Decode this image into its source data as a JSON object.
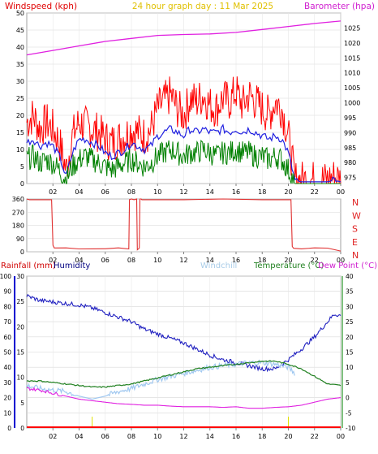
{
  "chart_data": [
    {
      "type": "line",
      "title": "24 hour graph day : 11 Mar 2025",
      "left_axis_label": "Windspeed (kph)",
      "right_axis_label": "Barometer (hpa)",
      "x_tick_labels": [
        "02",
        "04",
        "06",
        "08",
        "10",
        "12",
        "14",
        "16",
        "18",
        "20",
        "22",
        "00"
      ],
      "left_ylim": [
        0,
        50
      ],
      "left_ticks": [
        "0",
        "5",
        "10",
        "15",
        "20",
        "25",
        "30",
        "35",
        "40",
        "45",
        "50"
      ],
      "right_ylim": [
        973,
        1030
      ],
      "right_ticks": [
        "975",
        "980",
        "985",
        "990",
        "995",
        "1000",
        "1005",
        "1010",
        "1015",
        "1020",
        "1025"
      ],
      "grid": true,
      "series": [
        {
          "key": "barometer",
          "color": "#e020e0",
          "axis": "right",
          "x": [
            0,
            2,
            4,
            6,
            8,
            10,
            12,
            14,
            16,
            18,
            20,
            22,
            24
          ],
          "y": [
            1016,
            1017.5,
            1019,
            1020.5,
            1021.5,
            1022.5,
            1022.8,
            1023,
            1023.5,
            1024.5,
            1025.5,
            1026.5,
            1027.3
          ]
        },
        {
          "key": "gust",
          "color": "#ff0000",
          "axis": "left",
          "x": [
            0,
            0.5,
            1,
            1.5,
            2,
            2.5,
            3,
            3.5,
            4,
            4.5,
            5,
            5.5,
            6,
            6.5,
            7,
            7.5,
            8,
            8.5,
            9,
            9.5,
            10,
            10.5,
            11,
            11.5,
            12,
            12.5,
            13,
            13.5,
            14,
            14.5,
            15,
            15.5,
            16,
            16.5,
            17,
            17.5,
            18,
            18.5,
            19,
            19.5,
            20,
            20.5,
            21,
            21.5,
            22,
            22.5,
            23,
            23.5,
            24
          ],
          "y": [
            18,
            20,
            16,
            18,
            16,
            12,
            4,
            14,
            18,
            17,
            16,
            15,
            13,
            12,
            13,
            14,
            16,
            15,
            14,
            16,
            22,
            24,
            26,
            22,
            20,
            25,
            24,
            26,
            23,
            22,
            25,
            24,
            27,
            23,
            26,
            24,
            22,
            20,
            24,
            22,
            14,
            1,
            1,
            1,
            1,
            1,
            1,
            2,
            1
          ]
        },
        {
          "key": "avg_wind",
          "color": "#2020e0",
          "axis": "left",
          "x": [
            0,
            0.5,
            1,
            1.5,
            2,
            2.5,
            3,
            3.5,
            4,
            4.5,
            5,
            5.5,
            6,
            6.5,
            7,
            7.5,
            8,
            8.5,
            9,
            9.5,
            10,
            10.5,
            11,
            11.5,
            12,
            12.5,
            13,
            13.5,
            14,
            14.5,
            15,
            15.5,
            16,
            16.5,
            17,
            17.5,
            18,
            18.5,
            19,
            19.5,
            20,
            20.5,
            21,
            21.5,
            22,
            22.5,
            23,
            23.5,
            24
          ],
          "y": [
            12,
            13,
            11,
            12,
            11,
            8,
            2,
            9,
            13,
            13,
            12,
            11,
            9,
            8,
            9,
            10,
            12,
            11,
            10,
            11,
            14,
            15,
            16,
            15,
            14,
            16,
            15,
            16,
            15,
            15,
            16,
            15,
            16,
            15,
            16,
            15,
            14,
            13,
            14,
            13,
            9,
            1,
            0.5,
            0.5,
            0.5,
            0.5,
            0.5,
            1,
            0.5
          ]
        },
        {
          "key": "wind_min",
          "color": "#008000",
          "axis": "left",
          "x": [
            0,
            0.5,
            1,
            1.5,
            2,
            2.5,
            3,
            3.5,
            4,
            4.5,
            5,
            5.5,
            6,
            6.5,
            7,
            7.5,
            8,
            8.5,
            9,
            9.5,
            10,
            10.5,
            11,
            11.5,
            12,
            12.5,
            13,
            13.5,
            14,
            14.5,
            15,
            15.5,
            16,
            16.5,
            17,
            17.5,
            18,
            18.5,
            19,
            19.5,
            20,
            20.5,
            21,
            21.5,
            22,
            22.5,
            23,
            23.5,
            24
          ],
          "y": [
            7,
            8,
            6,
            7,
            6,
            4,
            1,
            5,
            7,
            8,
            7,
            6,
            5,
            4,
            5,
            6,
            7,
            6,
            5,
            6,
            8,
            9,
            10,
            9,
            8,
            9,
            9,
            10,
            9,
            8,
            9,
            9,
            10,
            9,
            9,
            8,
            8,
            7,
            8,
            7,
            4,
            0,
            0,
            0,
            0,
            0,
            0,
            0,
            0
          ]
        }
      ]
    },
    {
      "type": "line",
      "right_labels": [
        "N",
        "W",
        "S",
        "E",
        "N"
      ],
      "left_ticks": [
        "0",
        "90",
        "180",
        "270",
        "360"
      ],
      "x_tick_labels": [
        "02",
        "04",
        "06",
        "08",
        "10",
        "12",
        "14",
        "16",
        "18",
        "20",
        "22",
        "00"
      ],
      "ylim": [
        0,
        360
      ],
      "series": [
        {
          "key": "wind_dir",
          "color": "#e03030",
          "x": [
            0,
            0.2,
            1.9,
            2.0,
            2.1,
            3,
            4,
            5,
            6,
            7,
            7.8,
            7.85,
            8.0,
            8.2,
            8.4,
            8.45,
            8.6,
            8.65,
            8.75,
            8.8,
            9,
            12,
            15,
            18,
            20.2,
            20.3,
            20.4,
            21,
            22,
            23,
            24
          ],
          "y": [
            360,
            355,
            355,
            40,
            25,
            20,
            25,
            20,
            15,
            20,
            20,
            355,
            360,
            355,
            360,
            20,
            20,
            360,
            360,
            355,
            355,
            355,
            360,
            355,
            355,
            30,
            20,
            25,
            30,
            25,
            5
          ]
        }
      ]
    },
    {
      "type": "line",
      "labels": {
        "rainfall": "Rainfall (mm)",
        "humidity": "Humidity",
        "windchill": "Windchill",
        "temperature": "Temperature (°C)",
        "dewpoint": "Dew Point (°C)"
      },
      "x_tick_labels": [
        "02",
        "04",
        "06",
        "08",
        "10",
        "12",
        "14",
        "16",
        "18",
        "20",
        "22",
        "00"
      ],
      "humidity_ticks": [
        "0",
        "10",
        "20",
        "30",
        "40",
        "50",
        "60",
        "70",
        "80",
        "90",
        "100"
      ],
      "humidity_ylim": [
        0,
        100
      ],
      "rain_ticks": [
        "0",
        "5",
        "10",
        "15",
        "20",
        "25",
        "30"
      ],
      "rain_ylim": [
        0,
        30
      ],
      "temp_ticks": [
        "-10",
        "-5",
        "0",
        "5",
        "10",
        "15",
        "20",
        "25",
        "30",
        "35",
        "40"
      ],
      "temp_ylim": [
        -10,
        40
      ],
      "rain_marker_hours": [
        5,
        20
      ],
      "series": [
        {
          "key": "humidity",
          "color": "#2020c0",
          "axis": "humidity",
          "x": [
            0,
            1,
            2,
            3,
            4,
            5,
            6,
            7,
            8,
            9,
            10,
            11,
            12,
            13,
            14,
            15,
            16,
            17,
            18,
            19,
            20,
            21,
            22,
            23,
            23.5,
            24
          ],
          "y": [
            87,
            84,
            83,
            82,
            81,
            79,
            76,
            73,
            70,
            65,
            62,
            59,
            56,
            52,
            48,
            45,
            43,
            41,
            39,
            39,
            45,
            52,
            60,
            70,
            75,
            74
          ]
        },
        {
          "key": "windchill",
          "color": "#a0c8f0",
          "axis": "temp",
          "x": [
            0,
            1,
            2,
            3,
            4,
            5,
            6,
            7,
            8,
            9,
            10,
            11,
            12,
            13,
            14,
            15,
            16,
            17,
            18,
            19,
            20,
            20.5
          ],
          "y": [
            4,
            3,
            2.5,
            2,
            0.5,
            -0.5,
            0.5,
            2,
            3,
            4.5,
            6,
            7,
            8,
            9,
            10,
            10.5,
            11,
            11.5,
            11.5,
            11,
            10,
            8
          ]
        },
        {
          "key": "temperature",
          "color": "#208020",
          "axis": "temp",
          "x": [
            0,
            1,
            2,
            3,
            4,
            5,
            6,
            7,
            8,
            9,
            10,
            11,
            12,
            13,
            14,
            15,
            16,
            17,
            18,
            19,
            20,
            21,
            22,
            23,
            24
          ],
          "y": [
            5.5,
            5.5,
            5,
            4.5,
            4,
            3.5,
            3.5,
            4,
            4.5,
            5.5,
            6.5,
            7.5,
            8.5,
            9.5,
            10,
            10.5,
            11,
            11.5,
            12,
            12,
            11,
            9.5,
            7,
            4.5,
            4
          ]
        },
        {
          "key": "dewpoint",
          "color": "#e020e0",
          "axis": "temp",
          "x": [
            0,
            1,
            2,
            3,
            4,
            5,
            6,
            7,
            8,
            9,
            10,
            11,
            12,
            13,
            14,
            15,
            16,
            17,
            18,
            19,
            20,
            21,
            22,
            23,
            24
          ],
          "y": [
            3,
            2.5,
            1.5,
            0.5,
            -0.5,
            -1,
            -1.5,
            -2,
            -2.2,
            -2.5,
            -2.5,
            -2.8,
            -3,
            -3,
            -3,
            -3.2,
            -3,
            -3.5,
            -3.5,
            -3.2,
            -3,
            -2.5,
            -1.5,
            -0.5,
            0
          ]
        }
      ]
    }
  ]
}
